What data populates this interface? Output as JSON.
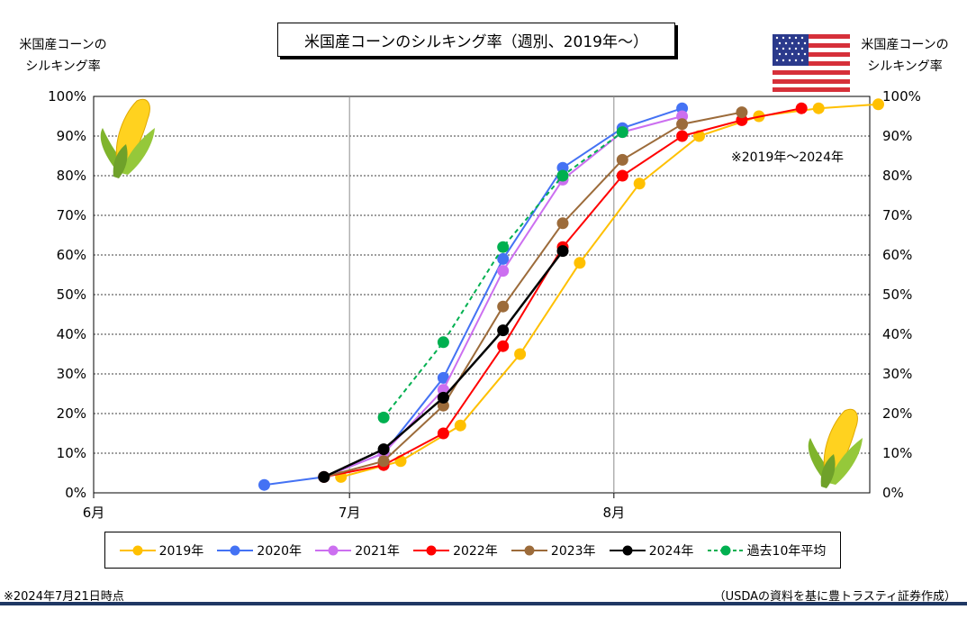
{
  "title": "米国産コーンのシルキング率（週別、2019年～）",
  "left_axis_title": [
    "米国産コーンの",
    "シルキング率"
  ],
  "right_axis_title": [
    "米国産コーンの",
    "シルキング率"
  ],
  "annotation": "※2019年～2024年",
  "footnote_left": "※2024年7月21日時点",
  "footnote_right": "（USDAの資料を基に豊トラスティ証券作成）",
  "icons": {
    "corn": "corn-icon",
    "flag": "us-flag-icon"
  },
  "chart_data": {
    "type": "line",
    "x_axis": {
      "type": "date",
      "range": [
        "2024-06-01",
        "2024-08-31"
      ],
      "ticks": [
        "6月",
        "7月",
        "8月"
      ],
      "tick_dates": [
        "2024-06-01",
        "2024-07-01",
        "2024-08-01"
      ]
    },
    "y_axis": {
      "range": [
        0,
        100
      ],
      "ticks": [
        "0%",
        "10%",
        "20%",
        "30%",
        "40%",
        "50%",
        "60%",
        "70%",
        "80%",
        "90%",
        "100%"
      ]
    },
    "grid": {
      "horizontal": "dashed",
      "vertical": "solid-at-month"
    },
    "legend_placement": "bottom",
    "series": [
      {
        "name": "2019年",
        "color": "#FFC000",
        "dashed": false,
        "x": [
          "2024-06-30",
          "2024-07-07",
          "2024-07-14",
          "2024-07-21",
          "2024-07-28",
          "2024-08-04",
          "2024-08-11",
          "2024-08-18",
          "2024-08-25",
          "2024-09-01"
        ],
        "values": [
          4,
          8,
          17,
          35,
          58,
          78,
          90,
          95,
          97,
          98
        ]
      },
      {
        "name": "2020年",
        "color": "#4472F4",
        "dashed": false,
        "x": [
          "2024-06-21",
          "2024-06-28",
          "2024-07-05",
          "2024-07-12",
          "2024-07-19",
          "2024-07-26",
          "2024-08-02",
          "2024-08-09"
        ],
        "values": [
          2,
          4,
          10,
          29,
          59,
          82,
          92,
          97
        ]
      },
      {
        "name": "2021年",
        "color": "#CC6FF0",
        "dashed": false,
        "x": [
          "2024-06-28",
          "2024-07-05",
          "2024-07-12",
          "2024-07-19",
          "2024-07-26",
          "2024-08-02",
          "2024-08-09"
        ],
        "values": [
          4,
          10,
          26,
          56,
          79,
          91,
          95
        ]
      },
      {
        "name": "2022年",
        "color": "#FF0000",
        "dashed": false,
        "x": [
          "2024-06-28",
          "2024-07-05",
          "2024-07-12",
          "2024-07-19",
          "2024-07-26",
          "2024-08-02",
          "2024-08-09",
          "2024-08-16",
          "2024-08-23"
        ],
        "values": [
          4,
          7,
          15,
          37,
          62,
          80,
          90,
          94,
          97
        ]
      },
      {
        "name": "2023年",
        "color": "#9C6B3A",
        "dashed": false,
        "x": [
          "2024-06-28",
          "2024-07-05",
          "2024-07-12",
          "2024-07-19",
          "2024-07-26",
          "2024-08-02",
          "2024-08-09",
          "2024-08-16"
        ],
        "values": [
          4,
          8,
          22,
          47,
          68,
          84,
          93,
          96
        ]
      },
      {
        "name": "2024年",
        "color": "#000000",
        "dashed": false,
        "x": [
          "2024-06-28",
          "2024-07-05",
          "2024-07-12",
          "2024-07-19",
          "2024-07-26"
        ],
        "values": [
          4,
          11,
          24,
          41,
          61
        ]
      },
      {
        "name": "過去10年平均",
        "color": "#00B050",
        "dashed": true,
        "x": [
          "2024-07-05",
          "2024-07-12",
          "2024-07-19",
          "2024-07-26",
          "2024-08-02"
        ],
        "values": [
          19,
          38,
          62,
          80,
          91
        ]
      }
    ]
  }
}
